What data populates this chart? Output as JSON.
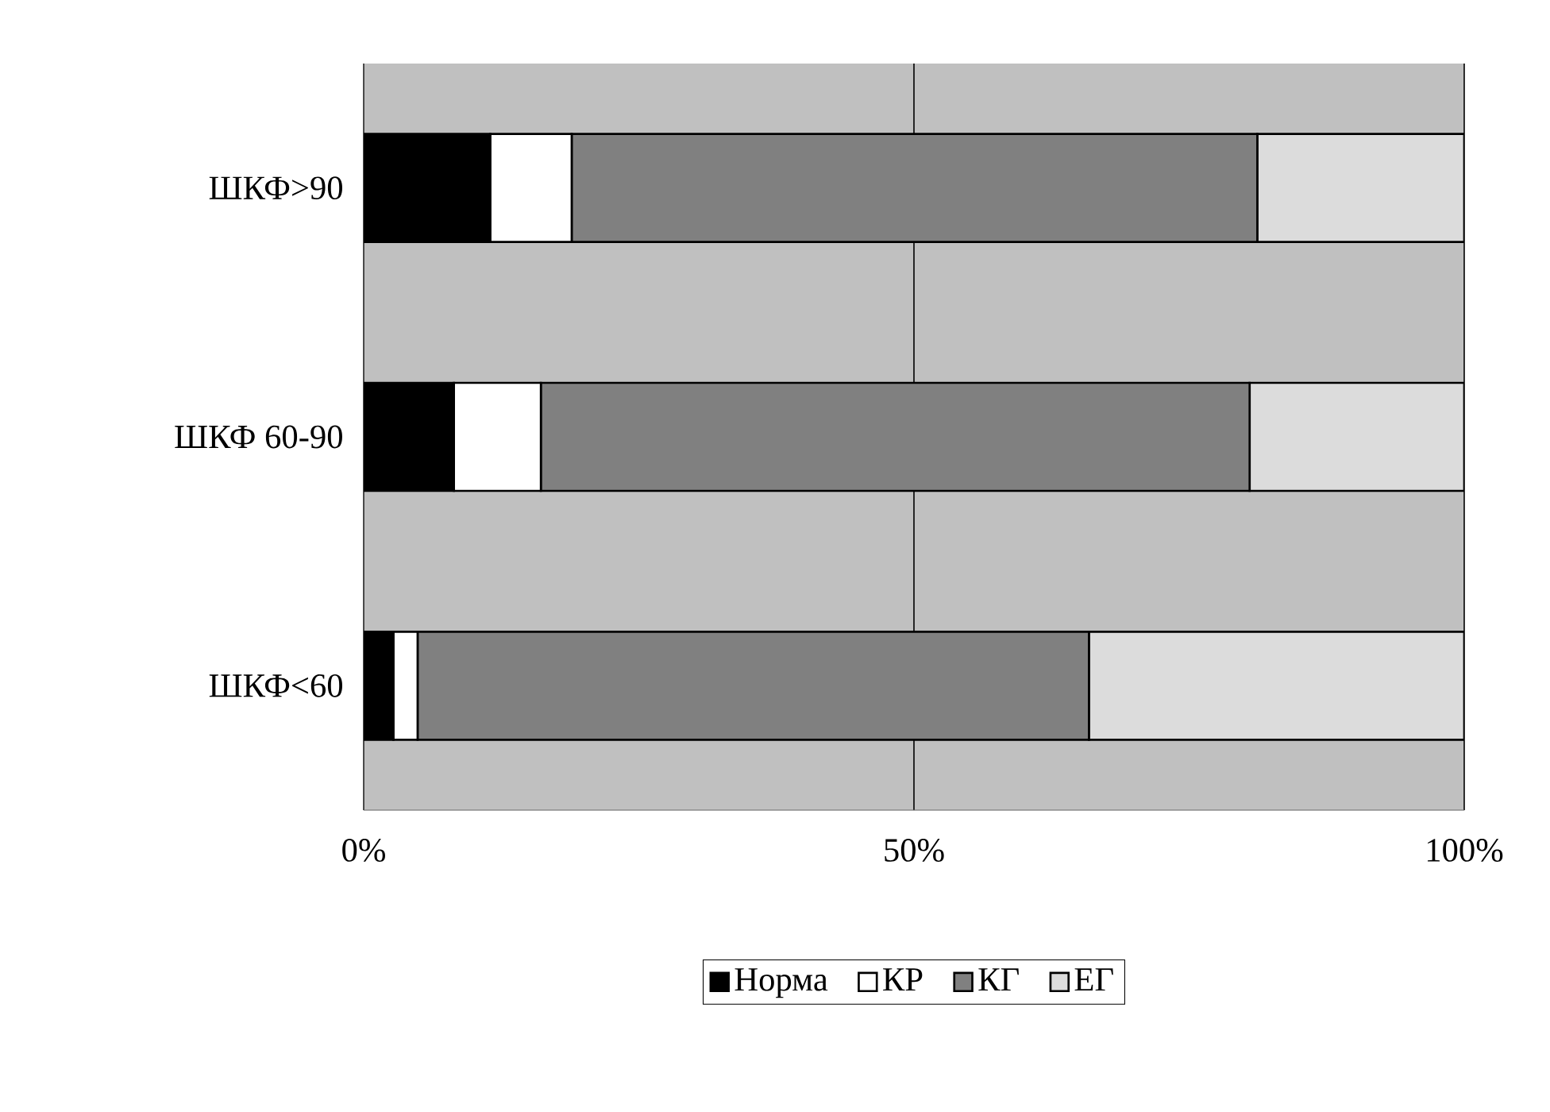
{
  "chart_data": {
    "type": "bar",
    "orientation": "horizontal",
    "stacked": true,
    "categories": [
      "ШКФ>90",
      "ШКФ 60-90",
      "ШКФ<60"
    ],
    "series": [
      {
        "name": "Норма",
        "color": "#000000",
        "values": [
          11.5,
          8.2,
          2.7
        ]
      },
      {
        "name": "КР",
        "color": "#ffffff",
        "values": [
          7.4,
          7.9,
          2.2
        ]
      },
      {
        "name": "КГ",
        "color": "#808080",
        "values": [
          62.3,
          64.4,
          61.0
        ]
      },
      {
        "name": "ЕГ",
        "color": "#dcdcdc",
        "values": [
          18.8,
          19.5,
          34.1
        ]
      }
    ],
    "xlim": [
      0,
      100
    ],
    "xticks": [
      {
        "value": 0,
        "label": "0%"
      },
      {
        "value": 50,
        "label": "50%"
      },
      {
        "value": 100,
        "label": "100%"
      }
    ],
    "grid": "x",
    "legend": "bottom"
  }
}
